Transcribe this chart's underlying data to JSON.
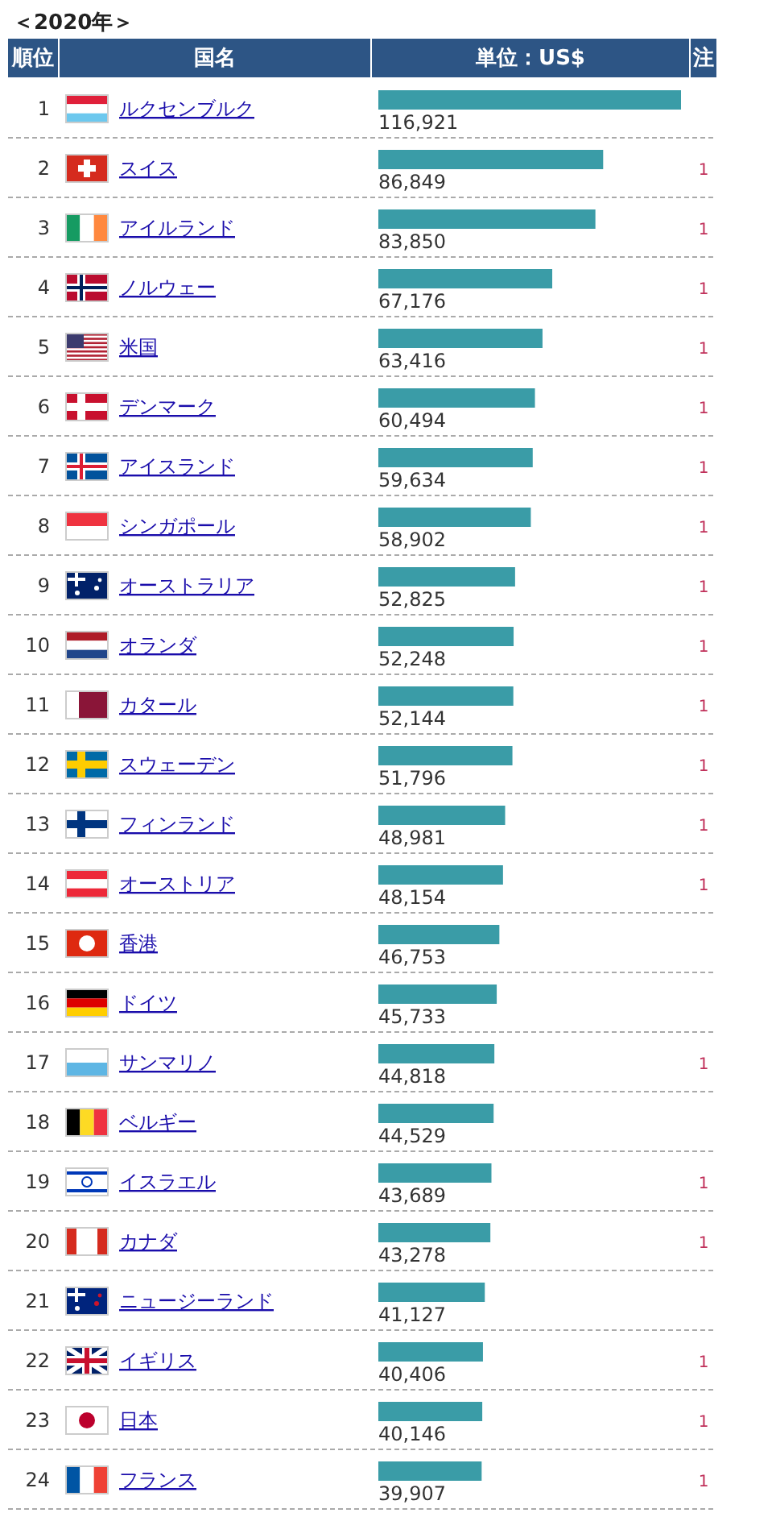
{
  "chart_data": {
    "type": "bar",
    "orientation": "horizontal",
    "title": "＜2020年＞",
    "ylabel": "国名",
    "xlabel": "単位：US$",
    "value_labels": [
      "116,921",
      "86,849",
      "83,850",
      "67,176",
      "63,416",
      "60,494",
      "59,634",
      "58,902",
      "52,825",
      "52,248",
      "52,144",
      "51,796",
      "48,981",
      "48,154",
      "46,753",
      "45,733",
      "44,818",
      "44,529",
      "43,689",
      "43,278",
      "41,127",
      "40,406",
      "40,146",
      "39,907"
    ],
    "color": "#3a9ca7",
    "categories": [
      "ルクセンブルク",
      "スイス",
      "アイルランド",
      "ノルウェー",
      "米国",
      "デンマーク",
      "アイスランド",
      "シンガポール",
      "オーストラリア",
      "オランダ",
      "カタール",
      "スウェーデン",
      "フィンランド",
      "オーストリア",
      "香港",
      "ドイツ",
      "サンマリノ",
      "ベルギー",
      "イスラエル",
      "カナダ",
      "ニュージーランド",
      "イギリス",
      "日本",
      "フランス"
    ],
    "values": [
      116921,
      86849,
      83850,
      67176,
      63416,
      60494,
      59634,
      58902,
      52825,
      52248,
      52144,
      51796,
      48981,
      48154,
      46753,
      45733,
      44818,
      44529,
      43689,
      43278,
      41127,
      40406,
      40146,
      39907
    ],
    "annotations": [
      "順位",
      "注",
      "1",
      "2",
      "3",
      "4",
      "5",
      "6",
      "7",
      "8",
      "9",
      "10",
      "11",
      "12",
      "13",
      "14",
      "15",
      "16",
      "17",
      "18",
      "19",
      "20",
      "21",
      "22",
      "23",
      "24",
      null,
      "1",
      "1",
      "1",
      "1",
      "1",
      "1",
      "1",
      "1",
      "1",
      "1",
      "1",
      "1",
      "1",
      null,
      null,
      "1",
      null,
      "1",
      "1",
      null,
      "1",
      "1",
      "1"
    ]
  }
}
